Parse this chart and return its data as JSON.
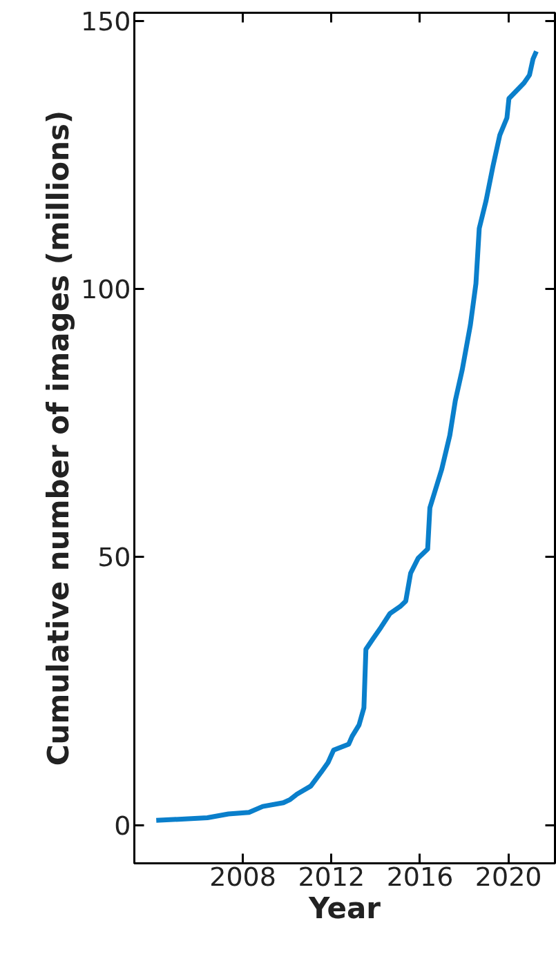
{
  "chart_data": {
    "type": "line",
    "xlabel": "Year",
    "ylabel": "Cumulative number of images (millions)",
    "xlim": [
      2003.1,
      2022.1
    ],
    "ylim": [
      -7.1,
      151.5
    ],
    "xticks": [
      2008,
      2012,
      2016,
      2020
    ],
    "yticks": [
      0,
      50,
      100,
      150
    ],
    "marker": "none",
    "line_style": "solid",
    "series": [
      {
        "color": "#0a7fcb",
        "x": [
          2004.09,
          2006.4,
          2007.35,
          2008.28,
          2008.9,
          2009.83,
          2010.14,
          2010.45,
          2011.07,
          2011.54,
          2011.85,
          2012.1,
          2012.78,
          2012.94,
          2013.25,
          2013.47,
          2013.56,
          2013.87,
          2014.24,
          2014.65,
          2015.11,
          2015.36,
          2015.58,
          2015.92,
          2016.35,
          2016.45,
          2016.98,
          2017.35,
          2017.6,
          2017.91,
          2018.28,
          2018.53,
          2018.68,
          2018.99,
          2019.3,
          2019.61,
          2019.93,
          2020.02,
          2020.7,
          2020.95,
          2021.11,
          2021.26
        ],
        "values": [
          0.9,
          1.4,
          2.1,
          2.4,
          3.5,
          4.2,
          4.8,
          5.8,
          7.3,
          9.9,
          11.7,
          14.0,
          15.1,
          16.6,
          18.7,
          21.9,
          32.8,
          34.7,
          36.9,
          39.5,
          40.8,
          41.8,
          47.0,
          49.8,
          51.5,
          59.2,
          66.3,
          72.7,
          79.2,
          84.9,
          93.3,
          101.0,
          111.3,
          116.5,
          122.9,
          128.7,
          131.9,
          135.5,
          138.4,
          139.9,
          142.9,
          144.3
        ]
      }
    ]
  }
}
